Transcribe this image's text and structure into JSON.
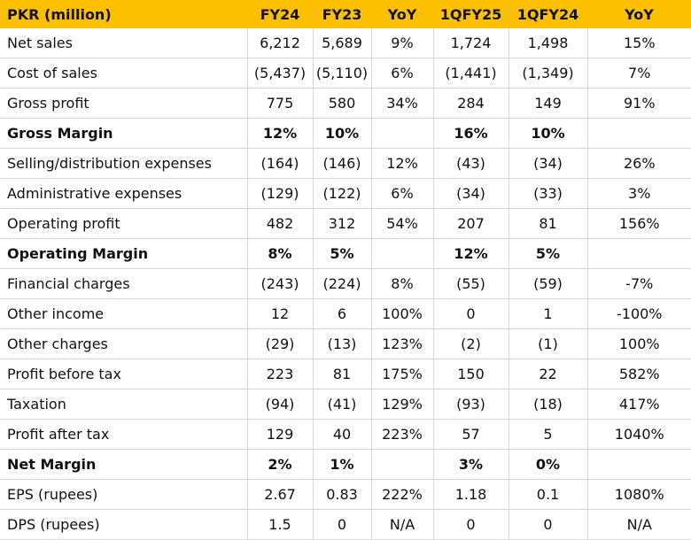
{
  "headers": [
    "PKR (million)",
    "FY24",
    "FY23",
    "YoY",
    "1QFY25",
    "1QFY24",
    "YoY"
  ],
  "rows": [
    {
      "label": "Net sales",
      "bold": false,
      "values": [
        "6,212",
        "5,689",
        "9%",
        "1,724",
        "1,498",
        "15%"
      ]
    },
    {
      "label": "Cost of sales",
      "bold": false,
      "values": [
        "(5,437)",
        "(5,110)",
        "6%",
        "(1,441)",
        "(1,349)",
        "7%"
      ]
    },
    {
      "label": "Gross profit",
      "bold": false,
      "values": [
        "775",
        "580",
        "34%",
        "284",
        "149",
        "91%"
      ]
    },
    {
      "label": "Gross Margin",
      "bold": true,
      "values": [
        "12%",
        "10%",
        "",
        "16%",
        "10%",
        ""
      ]
    },
    {
      "label": "Selling/distribution expenses",
      "bold": false,
      "values": [
        "(164)",
        "(146)",
        "12%",
        "(43)",
        "(34)",
        "26%"
      ]
    },
    {
      "label": "Administrative expenses",
      "bold": false,
      "values": [
        "(129)",
        "(122)",
        "6%",
        "(34)",
        "(33)",
        "3%"
      ]
    },
    {
      "label": "Operating profit",
      "bold": false,
      "values": [
        "482",
        "312",
        "54%",
        "207",
        "81",
        "156%"
      ]
    },
    {
      "label": "Operating Margin",
      "bold": true,
      "values": [
        "8%",
        "5%",
        "",
        "12%",
        "5%",
        ""
      ]
    },
    {
      "label": "Financial charges",
      "bold": false,
      "values": [
        "(243)",
        "(224)",
        "8%",
        "(55)",
        "(59)",
        "-7%"
      ]
    },
    {
      "label": "Other income",
      "bold": false,
      "values": [
        "12",
        "6",
        "100%",
        "0",
        "1",
        "-100%"
      ]
    },
    {
      "label": "Other charges",
      "bold": false,
      "values": [
        "(29)",
        "(13)",
        "123%",
        "(2)",
        "(1)",
        "100%"
      ]
    },
    {
      "label": "Profit before tax",
      "bold": false,
      "values": [
        "223",
        "81",
        "175%",
        "150",
        "22",
        "582%"
      ]
    },
    {
      "label": "Taxation",
      "bold": false,
      "values": [
        "(94)",
        "(41)",
        "129%",
        "(93)",
        "(18)",
        "417%"
      ]
    },
    {
      "label": "Profit after tax",
      "bold": false,
      "values": [
        "129",
        "40",
        "223%",
        "57",
        "5",
        "1040%"
      ]
    },
    {
      "label": "Net Margin",
      "bold": true,
      "values": [
        "2%",
        "1%",
        "",
        "3%",
        "0%",
        ""
      ]
    },
    {
      "label": "EPS (rupees)",
      "bold": false,
      "values": [
        "2.67",
        "0.83",
        "222%",
        "1.18",
        "0.1",
        "1080%"
      ]
    },
    {
      "label": "DPS (rupees)",
      "bold": false,
      "values": [
        "1.5",
        "0",
        "N/A",
        "0",
        "0",
        "N/A"
      ]
    }
  ]
}
